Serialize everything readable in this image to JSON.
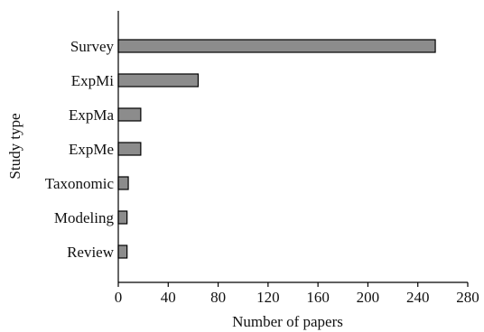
{
  "chart_data": {
    "type": "bar",
    "orientation": "horizontal",
    "categories": [
      "Survey",
      "ExpMi",
      "ExpMa",
      "ExpMe",
      "Taxonomic",
      "Modeling",
      "Review"
    ],
    "values": [
      254,
      64,
      18,
      18,
      8,
      7,
      7
    ],
    "xlabel": "Number of papers",
    "ylabel": "Study type",
    "xlim": [
      0,
      280
    ],
    "xticks": [
      0,
      40,
      80,
      120,
      160,
      200,
      240,
      280
    ],
    "grid": false,
    "bar_color": "#8c8c8c",
    "bar_edge_color": "#000000"
  }
}
